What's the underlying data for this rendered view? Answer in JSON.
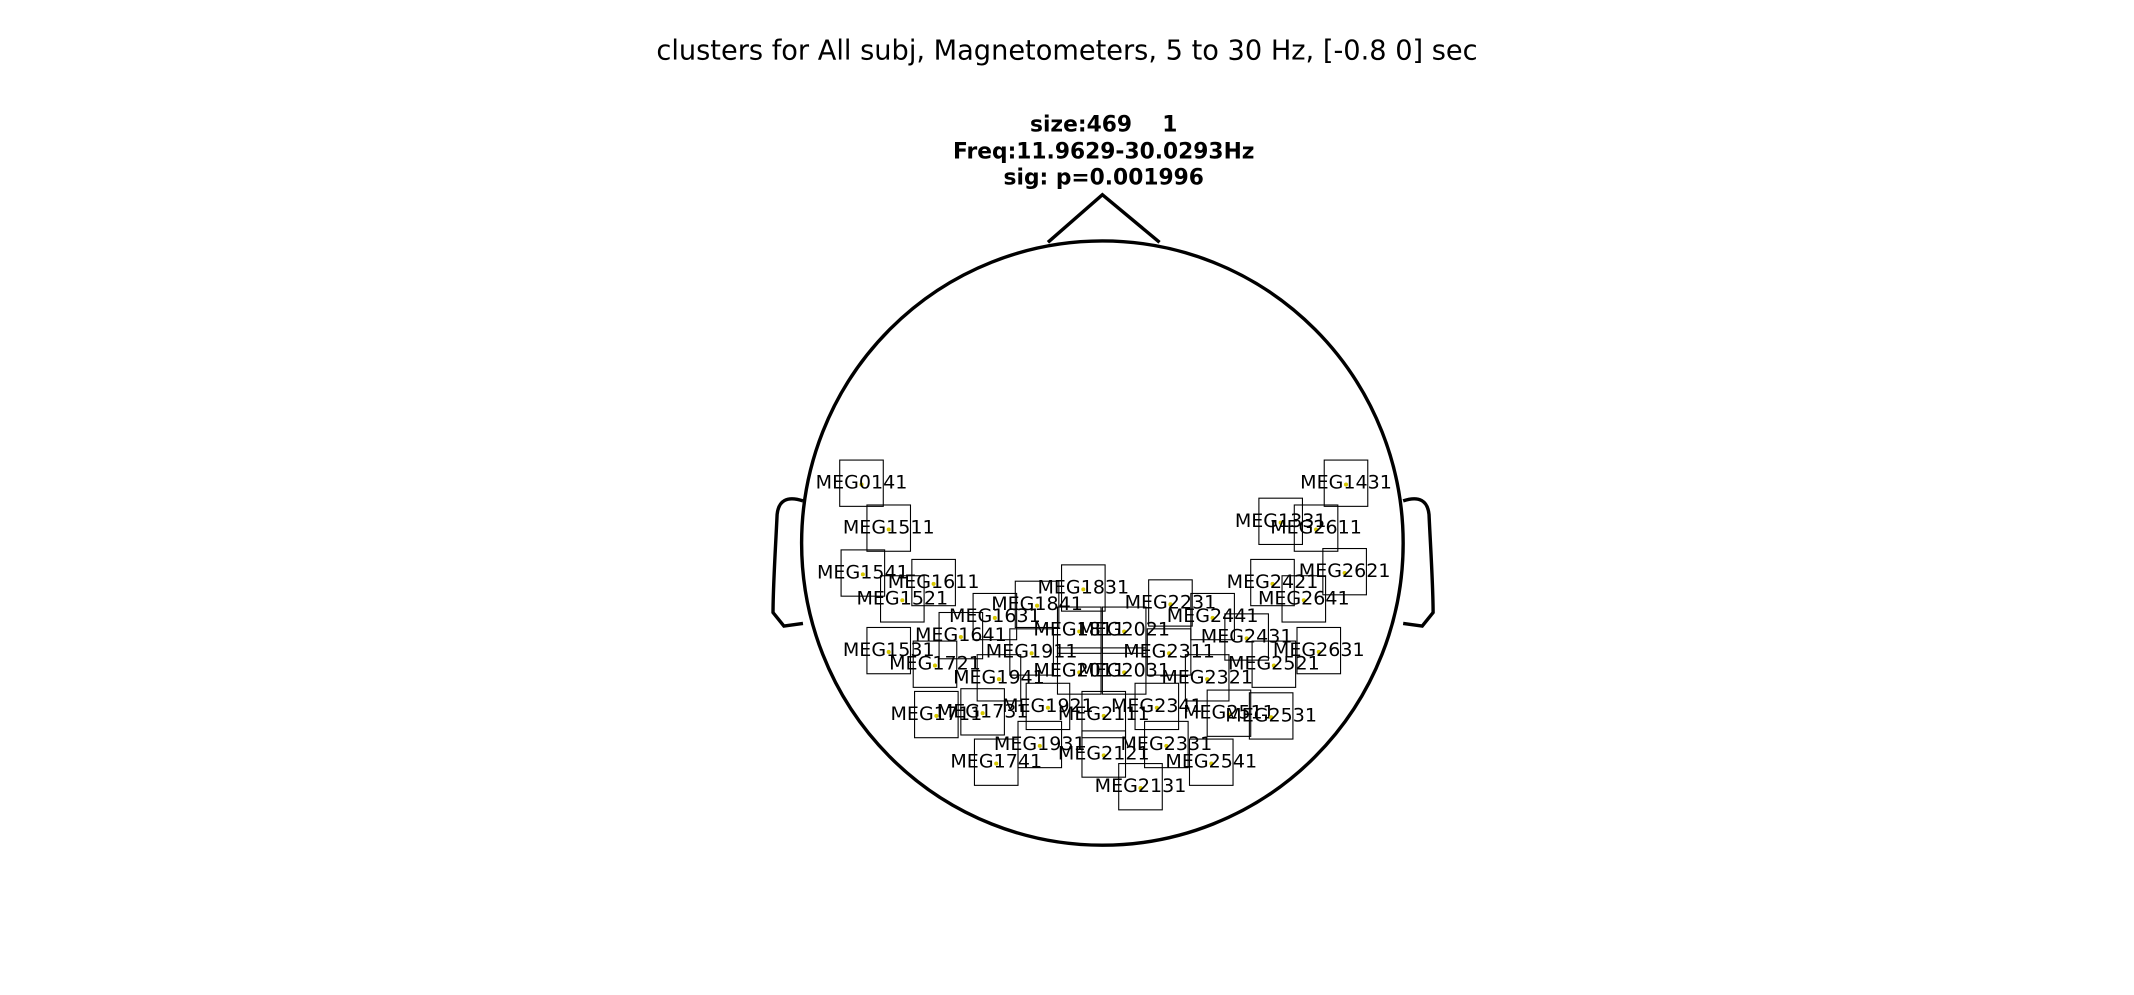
{
  "title": "clusters for All subj, Magnetometers, 5 to 30 Hz, [-0.8 0] sec",
  "cluster_info": [
    "size:469    1",
    "Freq:11.9629-30.0293Hz",
    "sig: p=0.001996"
  ],
  "sensors": [
    "MEG0141",
    "MEG1511",
    "MEG1541",
    "MEG1611",
    "MEG1521",
    "MEG1631",
    "MEG1841",
    "MEG1831",
    "MEG1641",
    "MEG1811",
    "MEG2021",
    "MEG1531",
    "MEG1721",
    "MEG1911",
    "MEG1941",
    "MEG2011",
    "MEG2031",
    "MEG2231",
    "MEG2441",
    "MEG2431",
    "MEG2311",
    "MEG2321",
    "MEG2521",
    "MEG1711",
    "MEG1731",
    "MEG1921",
    "MEG2111",
    "MEG2341",
    "MEG2511",
    "MEG2531",
    "MEG1931",
    "MEG2121",
    "MEG2331",
    "MEG1741",
    "MEG2541",
    "MEG2131",
    "MEG1431",
    "MEG1331",
    "MEG2611",
    "MEG2621",
    "MEG2421",
    "MEG2641",
    "MEG2631"
  ]
}
